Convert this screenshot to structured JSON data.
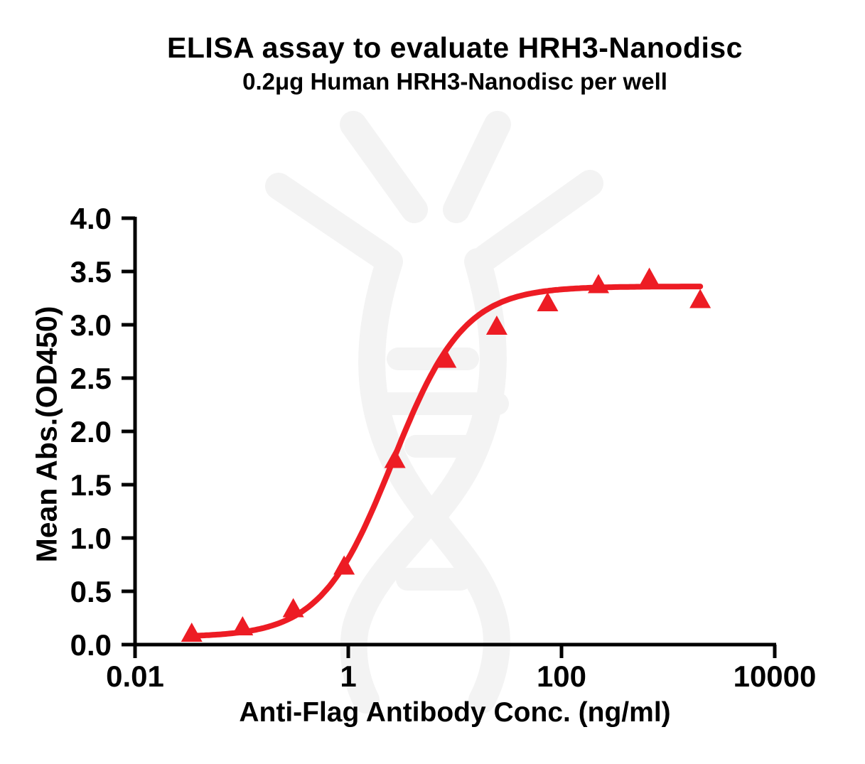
{
  "chart_data": {
    "type": "scatter",
    "title": "ELISA assay to evaluate HRH3-Nanodisc",
    "subtitle": "0.2μg Human HRH3-Nanodisc per well",
    "xlabel": "Anti-Flag Antibody Conc. (ng/ml)",
    "ylabel": "Mean Abs.(OD450)",
    "x_scale": "log",
    "xlim": [
      0.01,
      10000
    ],
    "ylim": [
      0,
      4
    ],
    "grid": false,
    "legend_position": "none",
    "x_ticks": [
      {
        "value": 0.01,
        "label": "0.01"
      },
      {
        "value": 1,
        "label": "1"
      },
      {
        "value": 100,
        "label": "100"
      },
      {
        "value": 10000,
        "label": "10000"
      }
    ],
    "y_ticks": [
      {
        "value": 0.0,
        "label": "0.0"
      },
      {
        "value": 0.5,
        "label": "0.5"
      },
      {
        "value": 1.0,
        "label": "1.0"
      },
      {
        "value": 1.5,
        "label": "1.5"
      },
      {
        "value": 2.0,
        "label": "2.0"
      },
      {
        "value": 2.5,
        "label": "2.5"
      },
      {
        "value": 3.0,
        "label": "3.0"
      },
      {
        "value": 3.5,
        "label": "3.5"
      },
      {
        "value": 4.0,
        "label": "4.0"
      }
    ],
    "series": [
      {
        "name": "Human HRH3-Nanodisc (0.2μg/well)",
        "marker": "triangle-up",
        "color": "#ED1C24",
        "x": [
          0.034,
          0.102,
          0.305,
          0.914,
          2.74,
          8.23,
          24.7,
          74.1,
          222.2,
          666.7,
          2000
        ],
        "y": [
          0.1,
          0.16,
          0.33,
          0.73,
          1.73,
          2.67,
          2.98,
          3.2,
          3.37,
          3.43,
          3.23
        ]
      }
    ],
    "fit_curve": {
      "model": "4PL sigmoid",
      "bottom": 0.07,
      "top": 3.36,
      "ec50": 2.6,
      "hill": 1.3
    },
    "watermark_icon": "dna-antibody-logo",
    "colors": {
      "curve": "#ED1C24",
      "axis": "#000000",
      "text": "#000000",
      "watermark": "#F3F3F3",
      "background": "#FFFFFF"
    }
  }
}
